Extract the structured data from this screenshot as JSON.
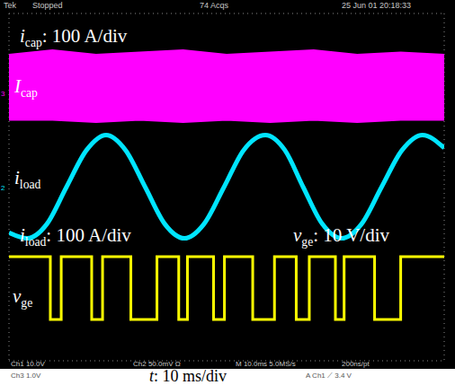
{
  "chart_data": {
    "type": "line",
    "header": [
      "Tek",
      "Stopped",
      "74 Acqs",
      "25 Jun 01 20:18:33"
    ],
    "status": [
      [
        "Ch1 10.0V",
        "Ch2 50.0mV Ω",
        "M 10.0ms 5.0MS/s",
        "200ns/pt"
      ],
      [
        "Ch3 1.0V",
        "A Ch1 ⟋ 3.4 V"
      ]
    ],
    "annotations": [
      "icap: 100 A/div",
      "iload: 100 A/div",
      "vge: 10 V/div"
    ],
    "xlabel": "t: 10 ms/div",
    "xlim": [
      0,
      100
    ],
    "xticks": [
      0,
      10,
      20,
      30,
      40,
      50,
      60,
      70,
      80,
      90,
      100
    ],
    "ylim": [
      -4,
      4
    ],
    "yticks": [
      -4,
      -3,
      -2,
      -1,
      0,
      1,
      2,
      3,
      4
    ],
    "grid": true,
    "tick_labels": false,
    "series": [
      {
        "name": "Icap",
        "channel": "3",
        "type": "range",
        "color": "#ff00ff",
        "x": [
          0,
          10,
          20,
          30,
          40,
          50,
          60,
          70,
          80,
          90,
          100
        ],
        "values": [
          [
            1.55,
            3.05
          ],
          [
            1.55,
            3.15
          ],
          [
            1.5,
            3.05
          ],
          [
            1.55,
            3.1
          ],
          [
            1.5,
            3.15
          ],
          [
            1.55,
            3.05
          ],
          [
            1.5,
            3.1
          ],
          [
            1.55,
            3.15
          ],
          [
            1.5,
            3.05
          ],
          [
            1.55,
            3.1
          ],
          [
            1.55,
            3.05
          ]
        ]
      },
      {
        "name": "iload",
        "channel": "2",
        "type": "line",
        "color": "#00e5ff",
        "x": [
          0,
          4.2,
          8.7,
          13.2,
          17.8,
          22.3,
          26.8,
          31.3,
          35.8,
          40.3,
          44.8,
          49.4,
          53.9,
          58.9,
          63.4,
          67.6,
          72,
          76.4,
          81,
          85.6,
          90.3,
          95,
          100
        ],
        "values": [
          -1.05,
          -1.18,
          -0.85,
          0,
          0.85,
          1.2,
          0.85,
          0,
          -0.85,
          -1.18,
          -0.85,
          0,
          0.85,
          1.2,
          0.85,
          0,
          -0.85,
          -1.18,
          -0.85,
          0,
          0.85,
          1.2,
          0.9
        ]
      },
      {
        "name": "vge",
        "type": "step",
        "color": "#ffff00",
        "x": [
          0,
          9.5,
          12,
          19,
          21.5,
          28,
          34,
          39,
          41,
          47,
          49.5,
          56,
          61,
          66,
          69,
          75,
          77,
          84,
          90,
          100
        ],
        "values": [
          -1.6,
          -3.05,
          -1.6,
          -3.05,
          -1.6,
          -3.05,
          -1.6,
          -3.05,
          -1.6,
          -3.05,
          -1.6,
          -3.05,
          -1.6,
          -3.05,
          -1.6,
          -3.05,
          -1.6,
          -3.05,
          -1.6,
          -1.6
        ]
      }
    ]
  }
}
